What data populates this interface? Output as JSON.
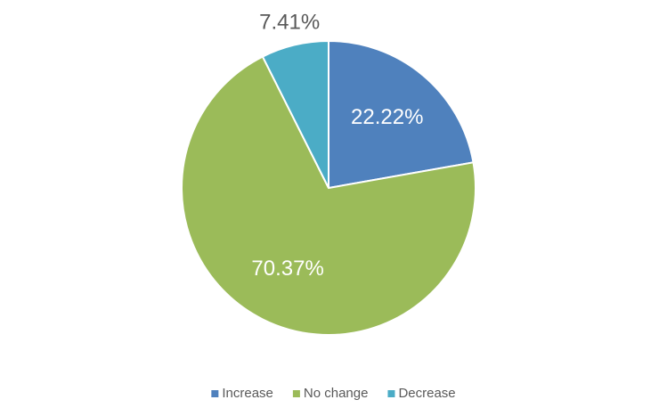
{
  "chart_data": {
    "type": "pie",
    "categories": [
      "Increase",
      "No change",
      "Decrease"
    ],
    "values": [
      22.22,
      70.37,
      7.41
    ],
    "value_labels": [
      "22.22%",
      "70.37%",
      "7.41%"
    ],
    "colors": [
      "#4f81bd",
      "#9bbb59",
      "#4bacc6"
    ],
    "legend": "bottom"
  }
}
